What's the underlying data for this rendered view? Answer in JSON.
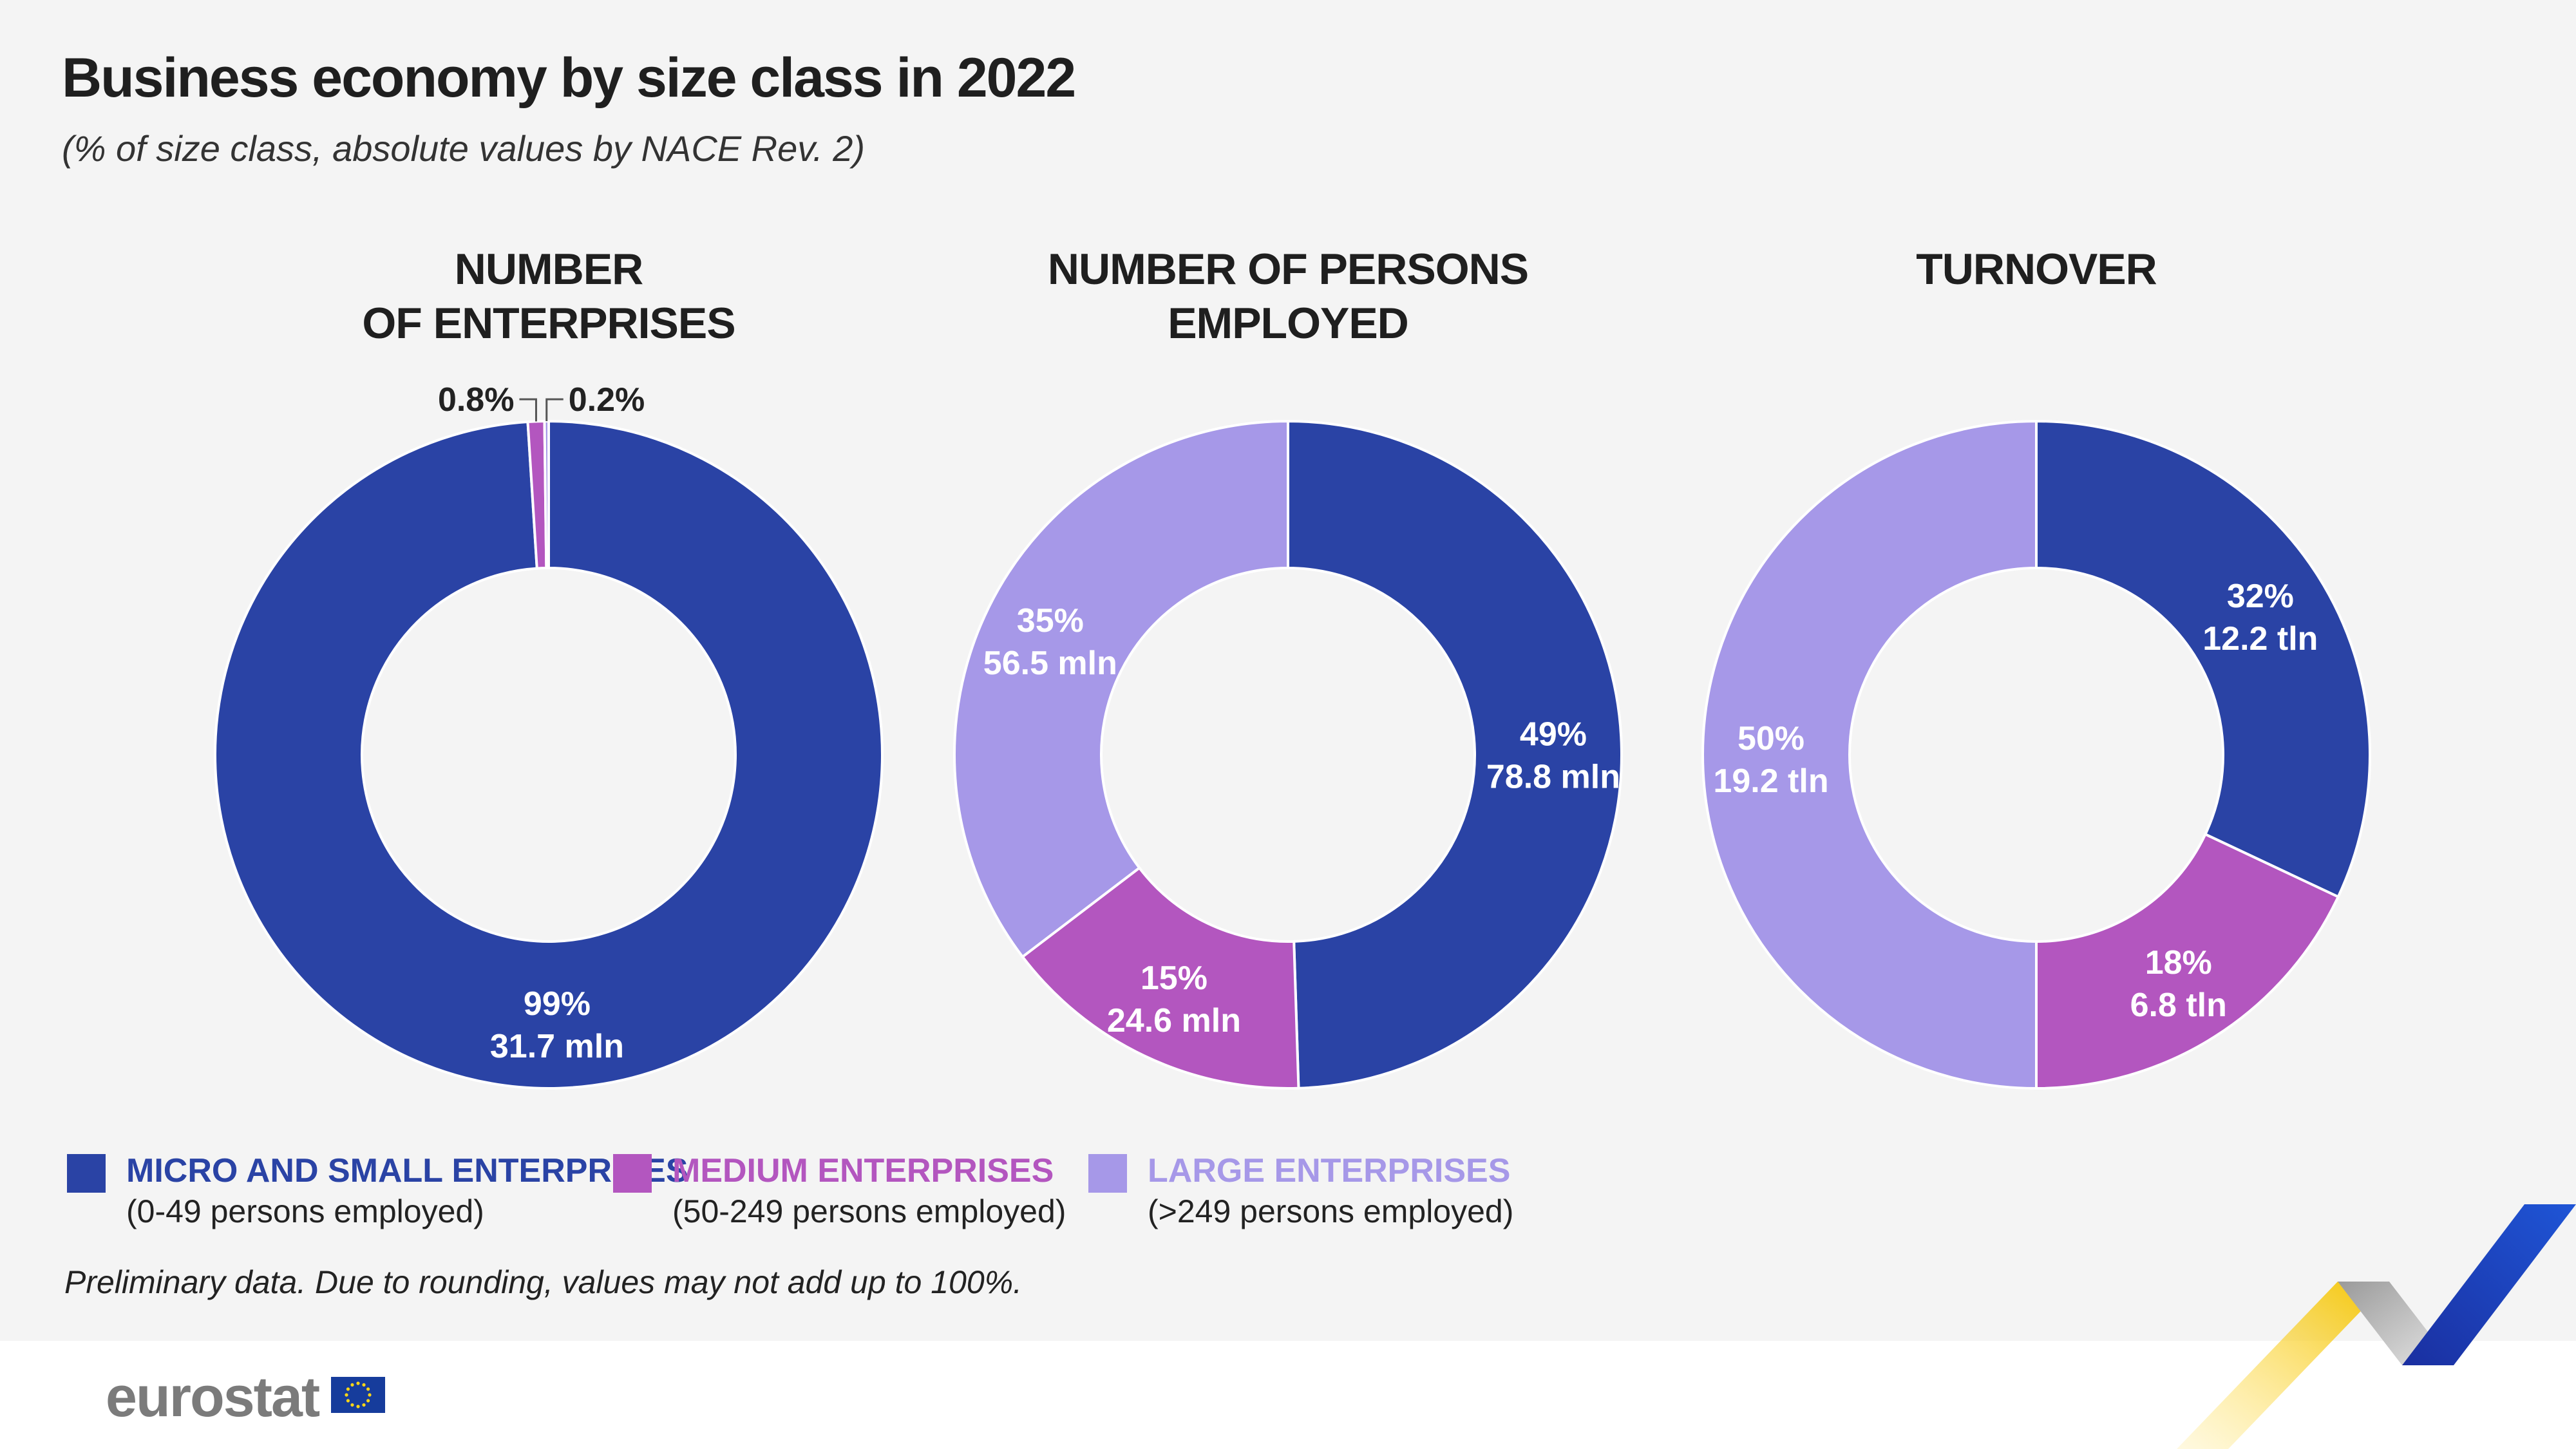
{
  "header": {
    "title": "Business economy by size class in 2022",
    "subtitle": "(% of size class, absolute values by NACE Rev. 2)"
  },
  "colors": {
    "micro_small": "#2a43a5",
    "medium": "#b356bf",
    "large": "#a698e8"
  },
  "chart_data": [
    {
      "type": "pie",
      "style": "donut",
      "title": "NUMBER\nOF ENTERPRISES",
      "categories": [
        "MICRO AND SMALL ENTERPRISES",
        "MEDIUM ENTERPRISES",
        "LARGE ENTERPRISES"
      ],
      "values": [
        99.0,
        0.8,
        0.2
      ],
      "labels": [
        {
          "pct": "99%",
          "abs": "31.7 mln"
        },
        {
          "pct": "0.8%",
          "abs": ""
        },
        {
          "pct": "0.2%",
          "abs": ""
        }
      ]
    },
    {
      "type": "pie",
      "style": "donut",
      "title": "NUMBER OF PERSONS\nEMPLOYED",
      "categories": [
        "MICRO AND SMALL ENTERPRISES",
        "MEDIUM ENTERPRISES",
        "LARGE ENTERPRISES"
      ],
      "values": [
        49,
        15,
        35
      ],
      "labels": [
        {
          "pct": "49%",
          "abs": "78.8 mln"
        },
        {
          "pct": "15%",
          "abs": "24.6 mln"
        },
        {
          "pct": "35%",
          "abs": "56.5 mln"
        }
      ]
    },
    {
      "type": "pie",
      "style": "donut",
      "title": "TURNOVER",
      "categories": [
        "MICRO AND SMALL ENTERPRISES",
        "MEDIUM ENTERPRISES",
        "LARGE ENTERPRISES"
      ],
      "values": [
        32,
        18,
        50
      ],
      "labels": [
        {
          "pct": "32%",
          "abs": "12.2 tln"
        },
        {
          "pct": "18%",
          "abs": "6.8 tln"
        },
        {
          "pct": "50%",
          "abs": "19.2 tln"
        }
      ]
    }
  ],
  "legend": [
    {
      "label": "MICRO AND SMALL ENTERPRISES",
      "sub": "(0-49 persons employed)",
      "color": "#2a43a5"
    },
    {
      "label": "MEDIUM ENTERPRISES",
      "sub": "(50-249 persons employed)",
      "color": "#b356bf"
    },
    {
      "label": "LARGE ENTERPRISES",
      "sub": "(>249 persons employed)",
      "color": "#a698e8"
    }
  ],
  "footnote": "Preliminary data. Due to rounding, values may not add up to 100%.",
  "footer": {
    "logo_text": "eurostat",
    "icons": [
      "eu-flag-icon",
      "eurostat-chevron-icon"
    ]
  }
}
